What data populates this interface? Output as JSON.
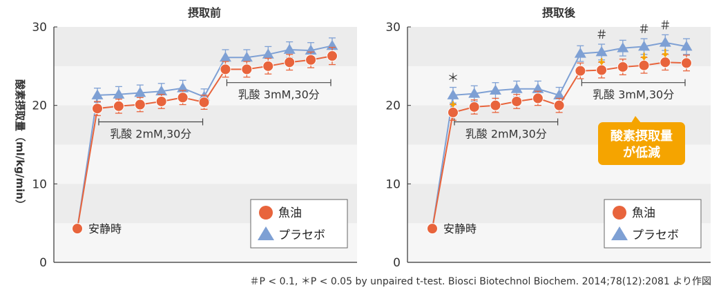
{
  "footnote": "＃P < 0.1, ＊P < 0.05  by unpaired t-test.    Biosci Biotechnol Biochem. 2014;78(12):2081 より作図",
  "colors": {
    "fish_oil": "#e8643c",
    "placebo": "#7ea0d4",
    "band": "#ececec",
    "plot_bg": "#f6f6f6",
    "axis": "#333333",
    "callout": "#f5a400",
    "arrow": "#f5a400"
  },
  "chart_data": [
    {
      "type": "line",
      "title": "摂取前",
      "ylabel": "酸素摂取量（ml/kg/min）",
      "ylim": [
        0,
        30
      ],
      "yticks": [
        0,
        10,
        20,
        30
      ],
      "x": [
        0,
        1,
        2,
        3,
        4,
        5,
        6,
        7,
        8,
        9,
        10,
        11,
        12
      ],
      "series": [
        {
          "name": "魚油",
          "values": [
            4.3,
            19.6,
            19.9,
            20.1,
            20.5,
            21.0,
            20.4,
            24.6,
            24.6,
            25.0,
            25.5,
            25.8,
            26.3
          ],
          "errors": [
            0,
            0.9,
            0.9,
            0.9,
            0.9,
            0.9,
            0.9,
            1.0,
            1.0,
            1.0,
            1.0,
            1.0,
            1.1
          ]
        },
        {
          "name": "プラセボ",
          "values": [
            4.3,
            21.3,
            21.4,
            21.6,
            21.8,
            22.2,
            21.1,
            26.1,
            26.1,
            26.5,
            27.1,
            27.0,
            27.6
          ],
          "errors": [
            0,
            0.9,
            1.0,
            1.0,
            1.0,
            1.0,
            1.0,
            1.0,
            1.0,
            1.0,
            1.0,
            1.0,
            1.0
          ]
        }
      ],
      "rest_label": "安静時",
      "brackets": [
        {
          "label": "乳酸 2mM,30分",
          "from": 1,
          "to": 6
        },
        {
          "label": "乳酸 3mM,30分",
          "from": 7,
          "to": 12
        }
      ],
      "significance": [],
      "legend": [
        "魚油",
        "プラセボ"
      ]
    },
    {
      "type": "line",
      "title": "摂取後",
      "ylim": [
        0,
        30
      ],
      "yticks": [
        0,
        10,
        20,
        30
      ],
      "x": [
        0,
        1,
        2,
        3,
        4,
        5,
        6,
        7,
        8,
        9,
        10,
        11,
        12
      ],
      "series": [
        {
          "name": "魚油",
          "values": [
            4.3,
            19.1,
            19.8,
            20.0,
            20.5,
            20.9,
            20.0,
            24.4,
            24.5,
            24.9,
            25.1,
            25.5,
            25.4
          ],
          "errors": [
            0,
            1.0,
            0.9,
            0.9,
            0.9,
            0.9,
            0.9,
            1.0,
            1.0,
            1.0,
            1.0,
            1.0,
            1.0
          ]
        },
        {
          "name": "プラセボ",
          "values": [
            4.3,
            21.3,
            21.5,
            21.9,
            22.1,
            22.1,
            21.3,
            26.6,
            26.8,
            27.3,
            27.5,
            28.0,
            27.5
          ],
          "errors": [
            0,
            1.0,
            1.0,
            1.0,
            1.0,
            1.0,
            1.0,
            1.0,
            1.0,
            1.0,
            1.0,
            1.0,
            1.0
          ]
        }
      ],
      "rest_label": "安静時",
      "brackets": [
        {
          "label": "乳酸 2mM,30分",
          "from": 1,
          "to": 6
        },
        {
          "label": "乳酸 3mM,30分",
          "from": 7,
          "to": 12
        }
      ],
      "significance": [
        {
          "index": 1,
          "mark": "＊"
        },
        {
          "index": 8,
          "mark": "＃"
        },
        {
          "index": 10,
          "mark": "＃"
        },
        {
          "index": 11,
          "mark": "＃"
        }
      ],
      "callout": [
        "酸素摂取量",
        "が低減"
      ],
      "legend": [
        "魚油",
        "プラセボ"
      ]
    }
  ]
}
